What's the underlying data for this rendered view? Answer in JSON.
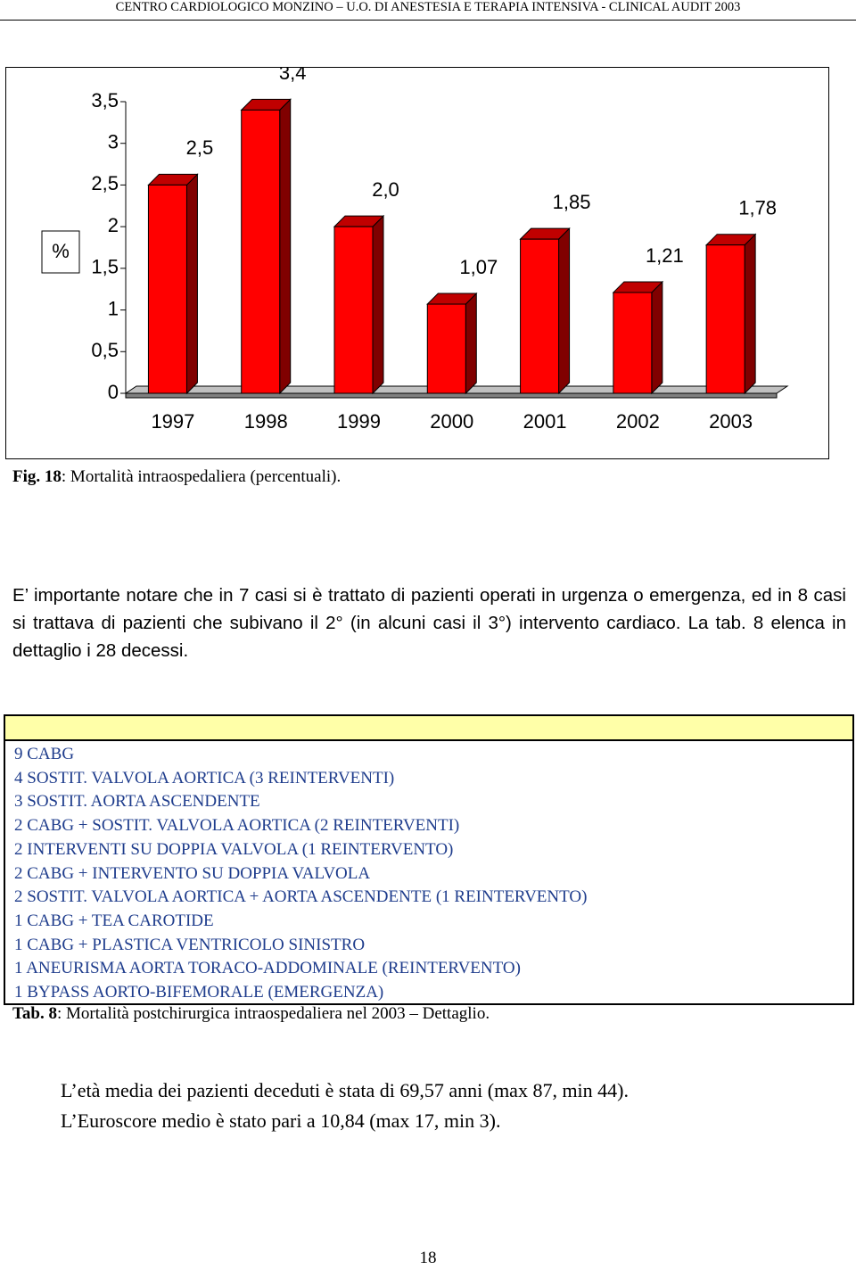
{
  "header": "CENTRO CARDIOLOGICO MONZINO – U.O. DI ANESTESIA E TERAPIA INTENSIVA - CLINICAL AUDIT 2003",
  "chart_data": {
    "type": "bar",
    "y_label": "%",
    "categories": [
      "1997",
      "1998",
      "1999",
      "2000",
      "2001",
      "2002",
      "2003"
    ],
    "values": [
      2.5,
      3.4,
      2.0,
      1.07,
      1.85,
      1.21,
      1.78
    ],
    "value_labels": [
      "2,5",
      "3,4",
      "2,0",
      "1,07",
      "1,85",
      "1,21",
      "1,78"
    ],
    "color": "#ff0000",
    "ylim": [
      0,
      3.5
    ],
    "yticks": [
      0,
      {
        "value": 0.5,
        "label": "0,5"
      },
      1,
      {
        "value": 1.5,
        "label": "1,5"
      },
      2,
      {
        "value": 2.5,
        "label": "2,5"
      },
      3,
      {
        "value": 3.5,
        "label": "3,5"
      }
    ]
  },
  "figure_caption": {
    "label": "Fig. 18",
    "text": ": Mortalità intraospedaliera (percentuali)."
  },
  "paragraph": "E’ importante notare che in 7 casi si è trattato di pazienti operati in urgenza o emergenza, ed in 8 casi si trattava di pazienti che subivano il 2° (in alcuni casi il 3°) intervento cardiaco. La tab. 8 elenca in dettaglio i 28 decessi.",
  "table": {
    "rows": [
      "9 CABG",
      "4 SOSTIT. VALVOLA AORTICA (3 REINTERVENTI)",
      "3 SOSTIT. AORTA ASCENDENTE",
      "2 CABG + SOSTIT. VALVOLA AORTICA (2 REINTERVENTI)",
      "2 INTERVENTI SU DOPPIA VALVOLA (1 REINTERVENTO)",
      "2 CABG + INTERVENTO SU DOPPIA VALVOLA",
      "2 SOSTIT. VALVOLA AORTICA + AORTA ASCENDENTE (1 REINTERVENTO)",
      "1 CABG + TEA CAROTIDE",
      "1 CABG + PLASTICA VENTRICOLO SINISTRO",
      "1 ANEURISMA AORTA TORACO-ADDOMINALE (REINTERVENTO)",
      "1 BYPASS AORTO-BIFEMORALE (EMERGENZA)"
    ]
  },
  "table_caption": {
    "label": "Tab. 8",
    "text": ": Mortalità postchirurgica intraospedaliera nel 2003 – Dettaglio."
  },
  "closing": [
    "L’età media dei pazienti deceduti è stata di 69,57 anni (max 87, min 44).",
    "L’Euroscore medio è stato pari a 10,84 (max 17, min 3)."
  ],
  "page_number": "18"
}
